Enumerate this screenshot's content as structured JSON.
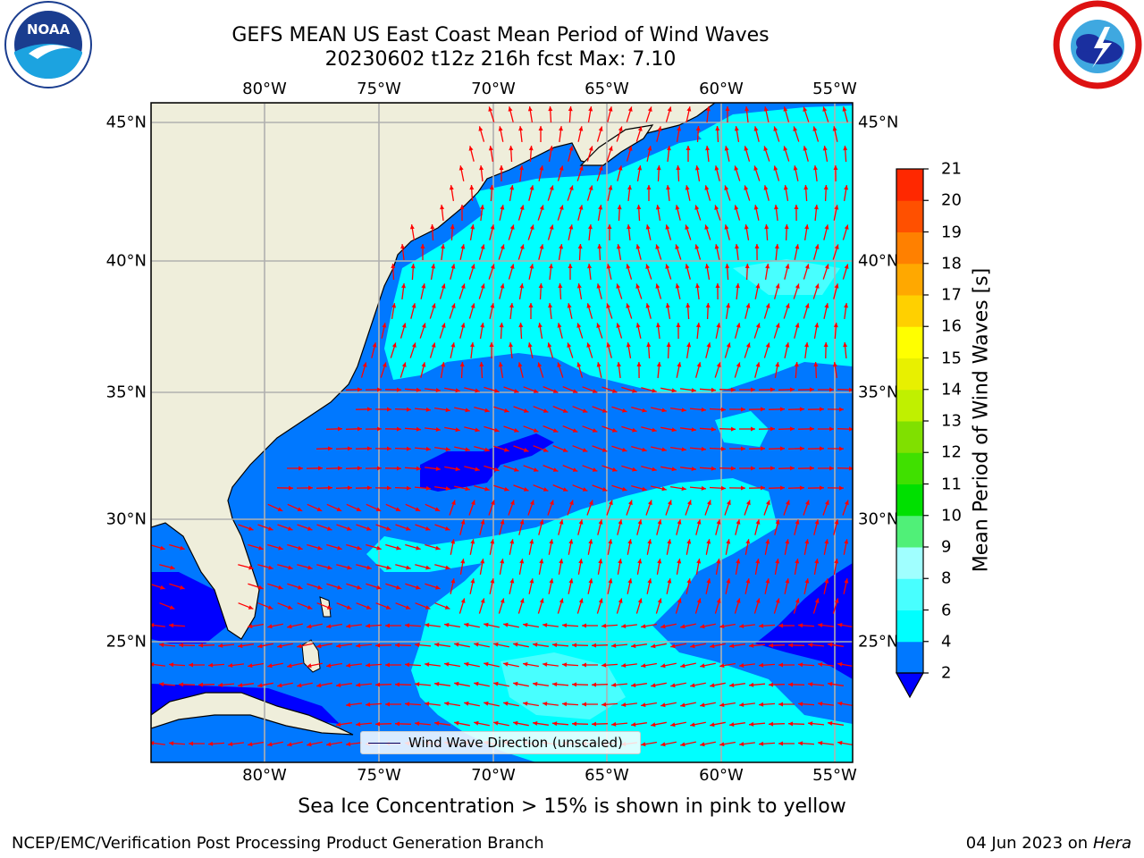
{
  "title_line1": "GEFS MEAN US East Coast Mean Period of Wind Waves",
  "title_line2": "20230602 t12z 216h fcst   Max: 7.10",
  "lon_ticks": [
    "80°W",
    "75°W",
    "70°W",
    "65°W",
    "60°W",
    "55°W"
  ],
  "lat_ticks": [
    "45°N",
    "40°N",
    "35°N",
    "30°N",
    "25°N"
  ],
  "colorbar": {
    "label": "Mean Period of Wind Waves [s]",
    "ticks": [
      "2",
      "4",
      "6",
      "8",
      "9",
      "10",
      "11",
      "12",
      "13",
      "14",
      "15",
      "16",
      "17",
      "18",
      "19",
      "20",
      "21"
    ],
    "colors": [
      "#0078ff",
      "#00ffff",
      "#48ffff",
      "#a0ffff",
      "#50f078",
      "#00e000",
      "#40e000",
      "#80e000",
      "#c0f000",
      "#e8f000",
      "#ffff00",
      "#ffd000",
      "#ffa800",
      "#ff8000",
      "#ff5000",
      "#ff2800"
    ],
    "extend_color": "#0000ff"
  },
  "legend_label": "Wind Wave Direction (unscaled)",
  "note": "Sea Ice Concentration > 15% is shown in pink to yellow",
  "footer_left": "NCEP/EMC/Verification Post Processing Product Generation Branch",
  "footer_date": "04 Jun 2023 on",
  "footer_machine": "Hera",
  "logo_left_text": "NOAA",
  "colors": {
    "land": "#efeedb",
    "ocean_light": "#0078ff",
    "ocean_cyan": "#00ffff",
    "ocean_pale": "#48ffff",
    "ocean_dark": "#0000ff",
    "arrow": "#ff0000",
    "grid": "#b0b0b0"
  }
}
